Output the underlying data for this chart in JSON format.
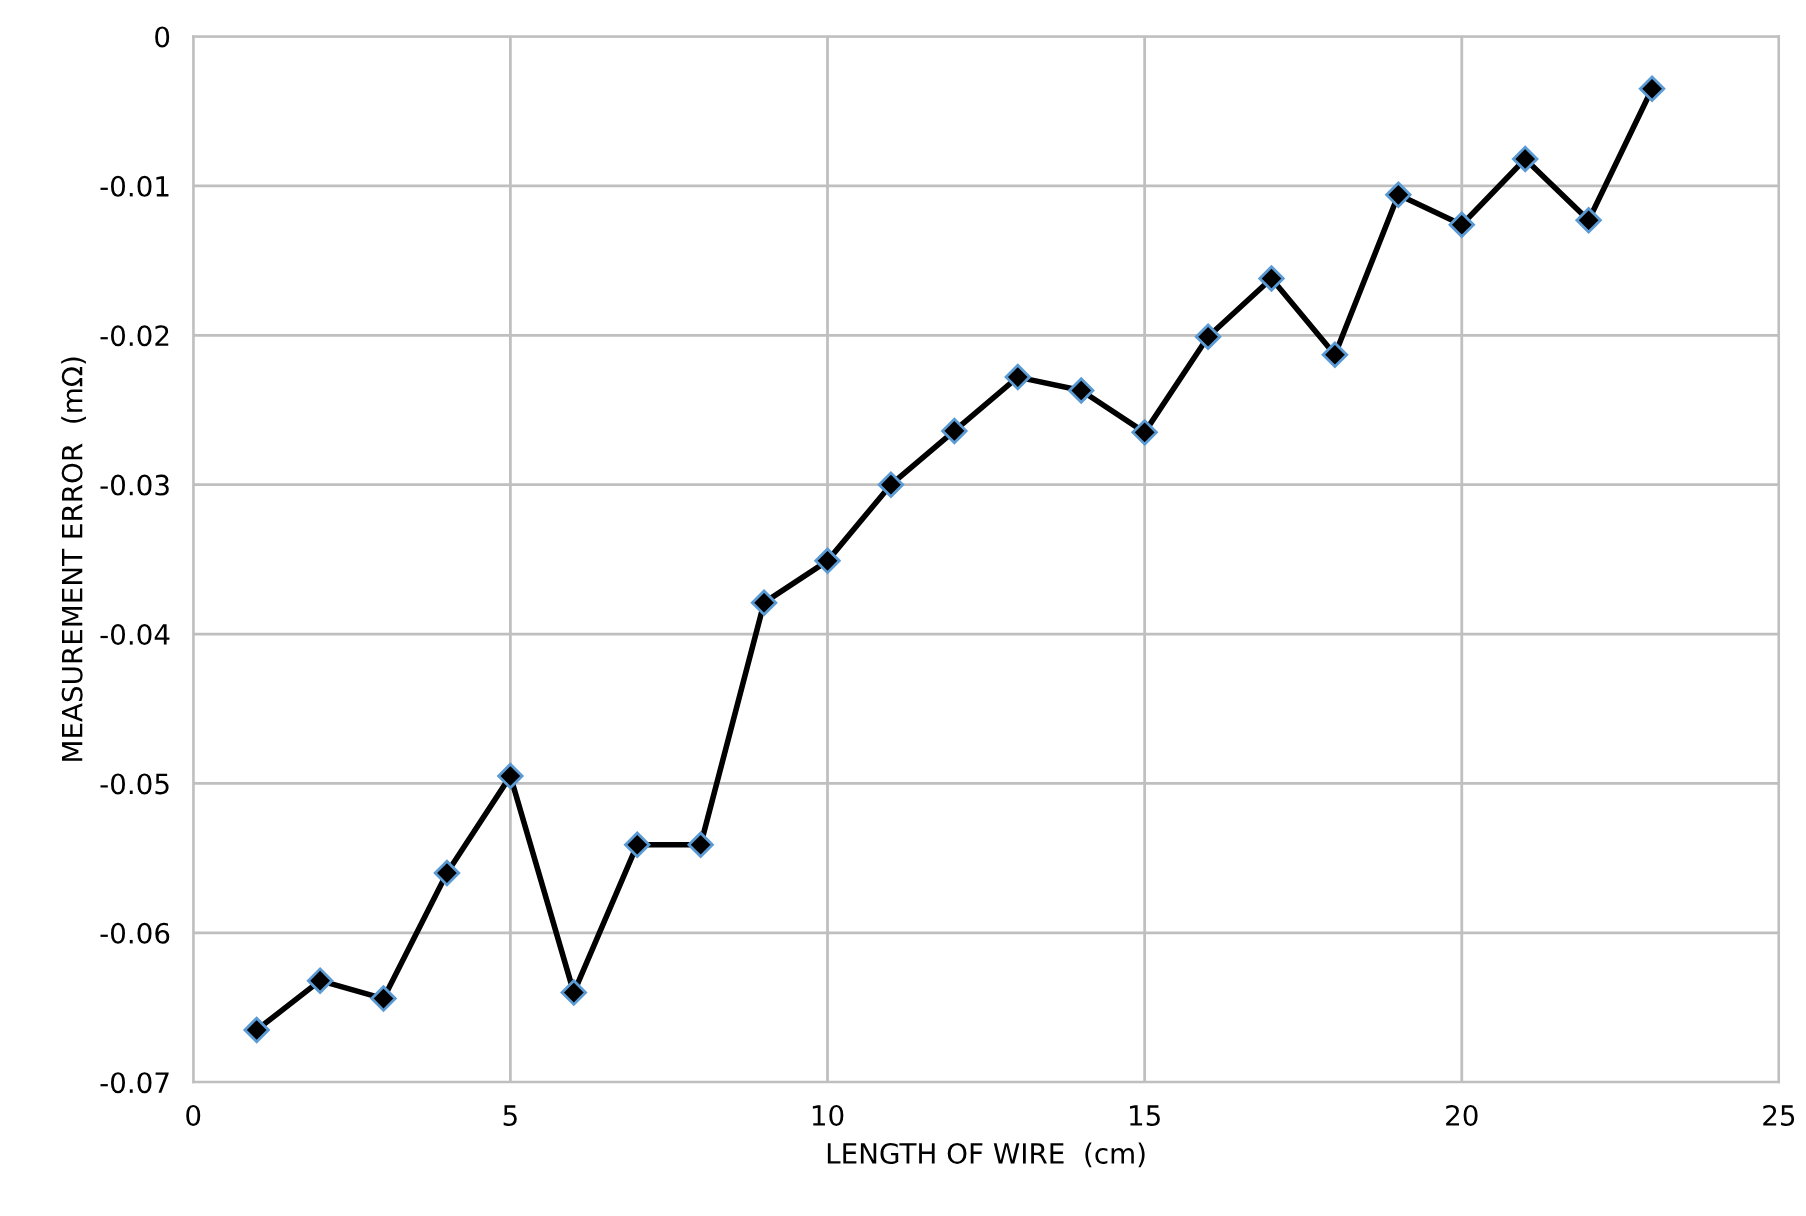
{
  "chart_data": {
    "type": "line",
    "xlabel": "LENGTH OF WIRE  (cm)",
    "ylabel": "MEASUREMENT ERROR  (mΩ)",
    "x": [
      1,
      2,
      3,
      4,
      5,
      6,
      7,
      8,
      9,
      10,
      11,
      12,
      13,
      14,
      15,
      16,
      17,
      18,
      19,
      20,
      21,
      22,
      23
    ],
    "series": [
      {
        "color": "#000000",
        "values": [
          -0.0665,
          -0.0632,
          -0.0644,
          -0.056,
          -0.0495,
          -0.064,
          -0.0541,
          -0.0541,
          -0.0379,
          -0.0351,
          -0.03,
          -0.0264,
          -0.0228,
          -0.0237,
          -0.0265,
          -0.0201,
          -0.0162,
          -0.0213,
          -0.0106,
          -0.0126,
          -0.0082,
          -0.0123,
          -0.0035
        ]
      }
    ],
    "marker": "diamond",
    "line_style": "solid",
    "grid": true,
    "xlim": [
      0,
      25
    ],
    "xticks": [
      0,
      5,
      10,
      15,
      20,
      25
    ],
    "ylim": [
      -0.07,
      0
    ],
    "yticks": [
      {
        "value": -0.07,
        "label": "-0.07"
      },
      {
        "value": -0.06,
        "label": "-0.06"
      },
      {
        "value": -0.05,
        "label": "-0.05"
      },
      {
        "value": -0.04,
        "label": "-0.04"
      },
      {
        "value": -0.03,
        "label": "-0.03"
      },
      {
        "value": -0.02,
        "label": "-0.02"
      },
      {
        "value": -0.01,
        "label": "-0.01"
      },
      0
    ]
  }
}
